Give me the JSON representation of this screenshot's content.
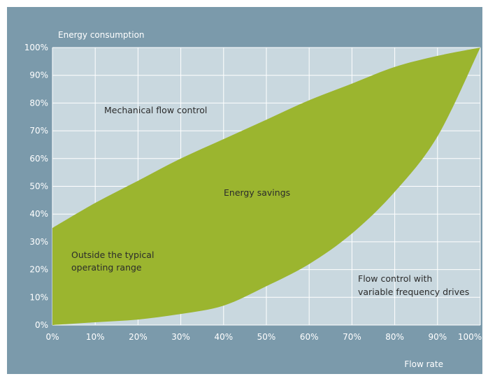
{
  "chart_data": {
    "type": "area",
    "ylabel": "Energy consumption",
    "xlabel": "Flow rate",
    "x_ticks": [
      "0%",
      "10%",
      "20%",
      "30%",
      "40%",
      "50%",
      "60%",
      "70%",
      "80%",
      "90%",
      "100%"
    ],
    "y_ticks": [
      "0%",
      "10%",
      "20%",
      "30%",
      "40%",
      "50%",
      "60%",
      "70%",
      "80%",
      "90%",
      "100%"
    ],
    "xlim": [
      0,
      100
    ],
    "ylim": [
      0,
      100
    ],
    "grid": true,
    "series": [
      {
        "key": "mechanical",
        "x": [
          0,
          10,
          20,
          30,
          40,
          50,
          60,
          70,
          80,
          90,
          100
        ],
        "values": [
          35,
          44,
          52,
          60,
          67,
          74,
          81,
          87,
          93,
          97,
          100
        ]
      },
      {
        "key": "vfd",
        "x": [
          0,
          10,
          20,
          30,
          40,
          50,
          60,
          70,
          80,
          90,
          100
        ],
        "values": [
          0,
          1,
          2,
          4,
          7,
          14,
          22,
          33,
          48,
          68,
          100
        ]
      }
    ],
    "annotations": {
      "mechanical": "Mechanical flow control",
      "savings": "Energy savings",
      "outside_line1": "Outside the typical",
      "outside_line2": "operating range",
      "vfd_line1": "Flow control with",
      "vfd_line2": "variable frequency drives"
    }
  },
  "colors": {
    "frame": "#7b9aab",
    "plot_bg": "#c9d8df",
    "grid": "#ffffff",
    "savings_fill": "#9bb52f",
    "text": "#2b2b2b",
    "axis_text": "#ffffff"
  }
}
